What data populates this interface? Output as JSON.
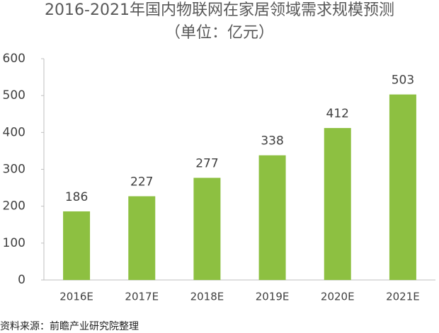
{
  "chart_data": {
    "type": "bar",
    "title": "2016-2021年国内物联网在家居领域需求规模预测",
    "subtitle": "（单位：亿元）",
    "categories": [
      "2016E",
      "2017E",
      "2018E",
      "2019E",
      "2020E",
      "2021E"
    ],
    "values": [
      186,
      227,
      277,
      338,
      412,
      503
    ],
    "color": "#8dc041",
    "ylim": [
      0,
      600
    ],
    "yticks": [
      0,
      100,
      200,
      300,
      400,
      500,
      600
    ],
    "grid": false,
    "source": "资料来源：前瞻产业研究院整理"
  }
}
